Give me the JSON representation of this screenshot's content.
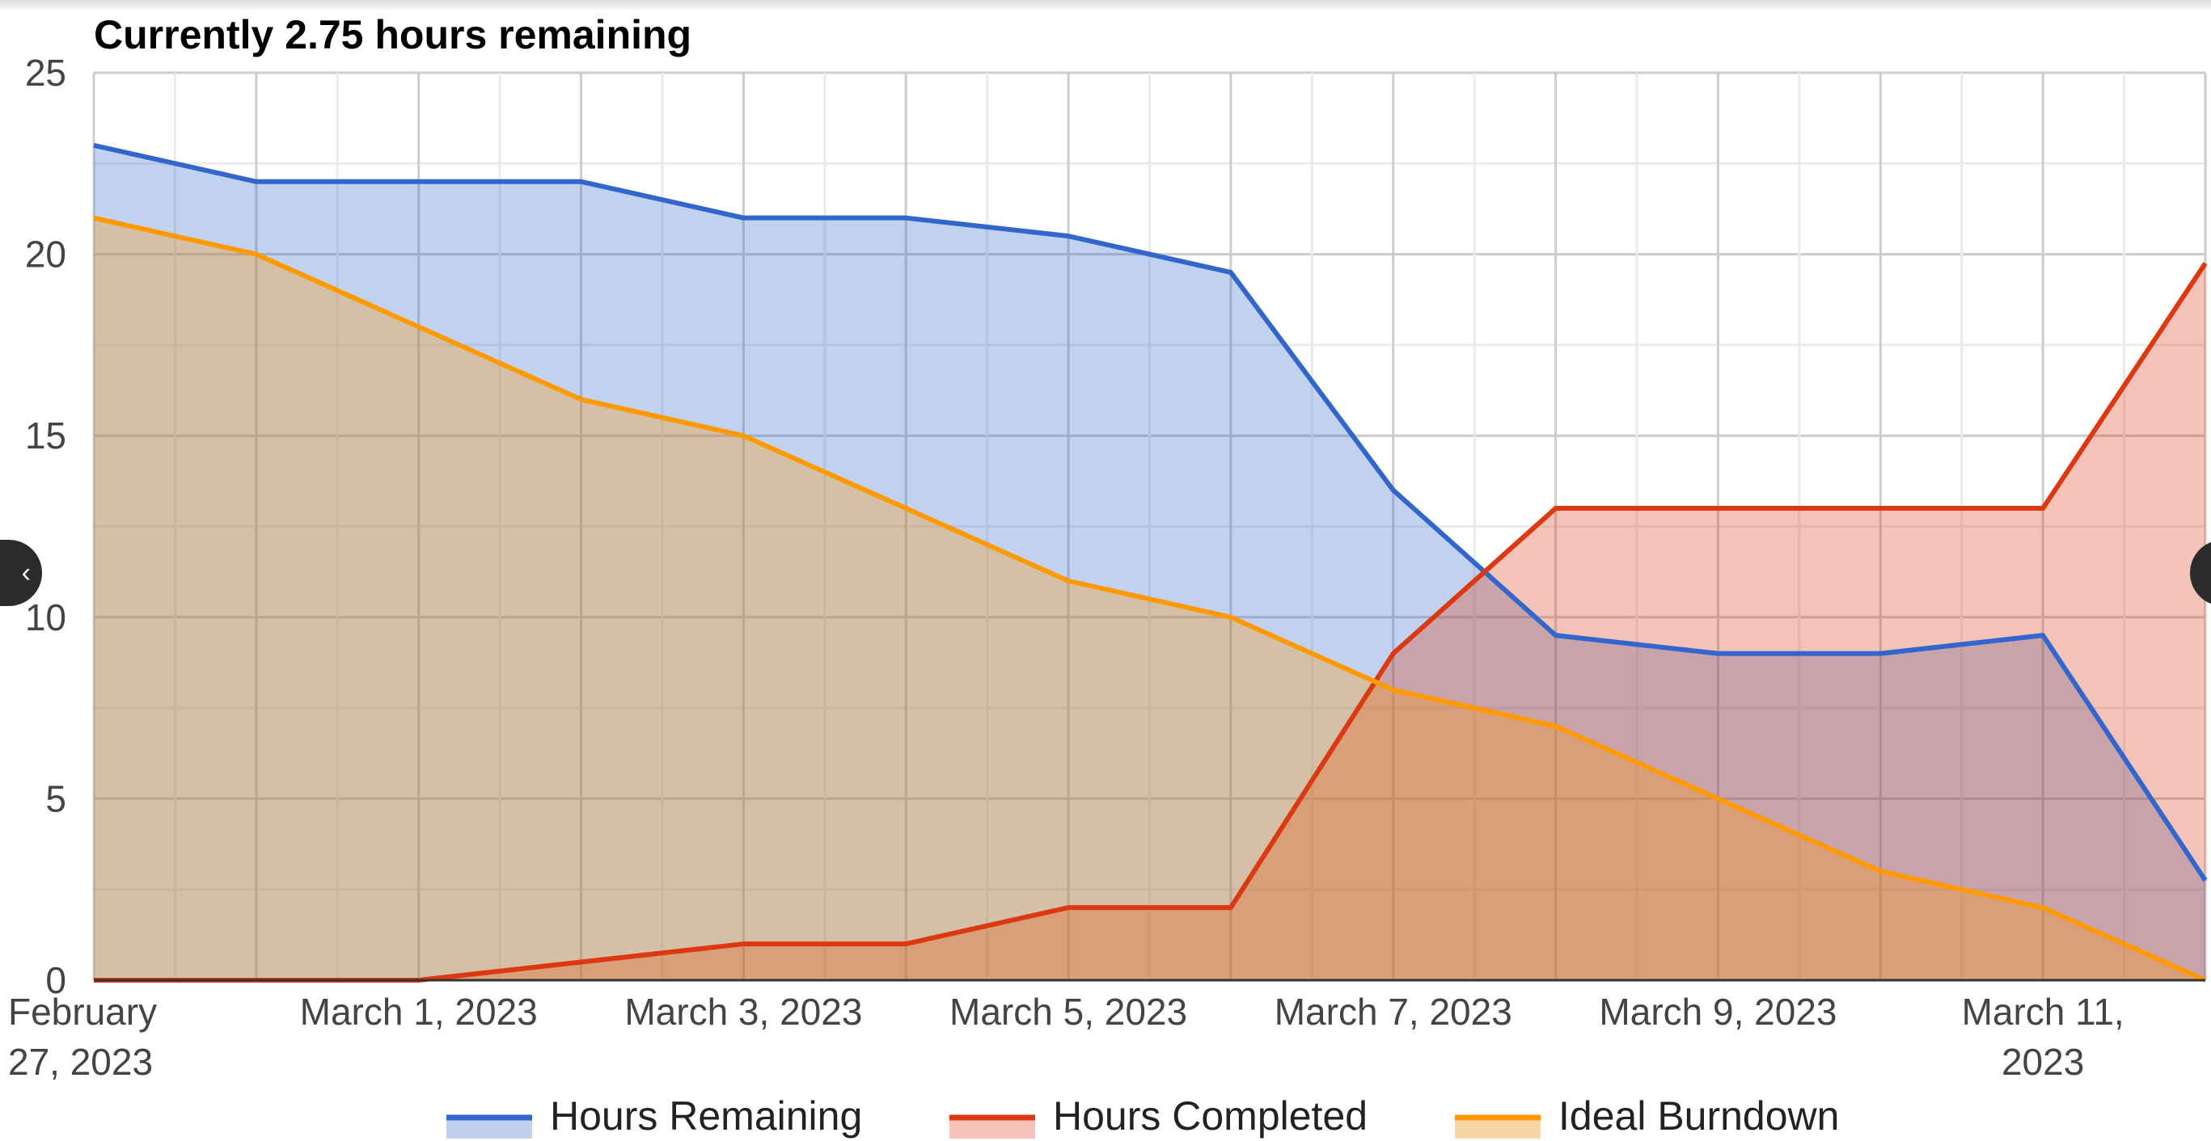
{
  "chart_data": {
    "type": "area",
    "title": "Currently 2.75 hours remaining",
    "xlabel": "",
    "ylabel": "",
    "ylim": [
      0,
      25
    ],
    "y_ticks": [
      "0",
      "5",
      "10",
      "15",
      "20",
      "25"
    ],
    "x": [
      "2023-02-27",
      "2023-02-28",
      "2023-03-01",
      "2023-03-02",
      "2023-03-03",
      "2023-03-04",
      "2023-03-05",
      "2023-03-06",
      "2023-03-07",
      "2023-03-08",
      "2023-03-09",
      "2023-03-10",
      "2023-03-11",
      "2023-03-12"
    ],
    "x_tick_labels": [
      {
        "date": "2023-02-27",
        "lines": [
          "February",
          "27, 2023"
        ]
      },
      {
        "date": "2023-03-01",
        "lines": [
          "March 1, 2023"
        ]
      },
      {
        "date": "2023-03-03",
        "lines": [
          "March 3, 2023"
        ]
      },
      {
        "date": "2023-03-05",
        "lines": [
          "March 5, 2023"
        ]
      },
      {
        "date": "2023-03-07",
        "lines": [
          "March 7, 2023"
        ]
      },
      {
        "date": "2023-03-09",
        "lines": [
          "March 9, 2023"
        ]
      },
      {
        "date": "2023-03-11",
        "lines": [
          "March 11,",
          "2023"
        ]
      }
    ],
    "series": [
      {
        "name": "Hours Remaining",
        "color": "#3366cc",
        "fill": "#c0d0ee",
        "values": [
          23,
          22,
          22,
          22,
          21,
          21,
          20.5,
          19.5,
          13.5,
          9.5,
          9,
          9,
          9.5,
          2.75
        ]
      },
      {
        "name": "Hours Completed",
        "color": "#dc3912",
        "fill": "#f4c2b6",
        "values": [
          0,
          0,
          0,
          0.5,
          1,
          1,
          2,
          2,
          9,
          13,
          13,
          13,
          13,
          19.75
        ]
      },
      {
        "name": "Ideal Burndown",
        "color": "#ff9900",
        "fill": "#f8d6a8",
        "values": [
          21,
          20,
          18,
          16,
          15,
          13,
          11,
          10,
          8,
          7,
          5,
          3,
          2,
          0
        ]
      }
    ],
    "grid": true,
    "legend_position": "bottom"
  },
  "nav": {
    "prev_icon": "chevron-left-icon",
    "prev_glyph": "‹",
    "next_icon": "chevron-right-icon",
    "next_glyph": "›"
  }
}
